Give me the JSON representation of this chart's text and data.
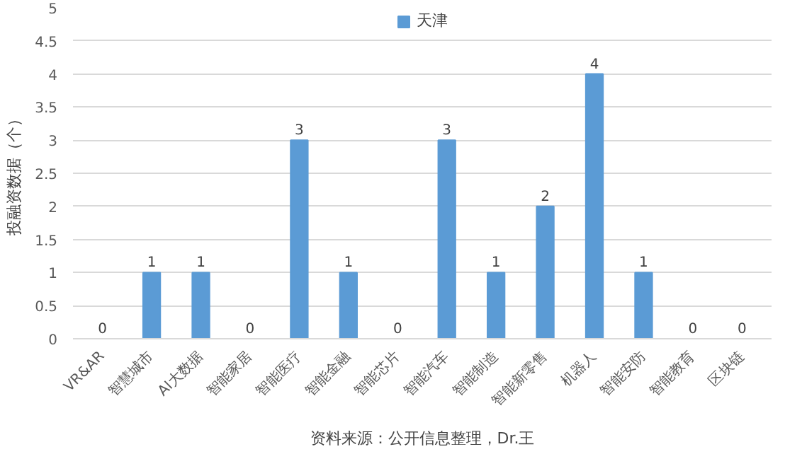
{
  "chart_data": {
    "type": "bar",
    "ylabel": "投融资数据（个）",
    "categories": [
      "VR&AR",
      "智慧城市",
      "AI大数据",
      "智能家居",
      "智能医疗",
      "智能金融",
      "智能芯片",
      "智能汽车",
      "智能制造",
      "智能新零售",
      "机器人",
      "智能安防",
      "智能教育",
      "区块链"
    ],
    "series": [
      {
        "name": "天津",
        "color": "#5b9bd5",
        "values": [
          0,
          1,
          1,
          0,
          3,
          1,
          0,
          3,
          1,
          2,
          4,
          1,
          0,
          0
        ]
      }
    ],
    "ylim": [
      0,
      5
    ],
    "yticks": [
      0,
      0.5,
      1,
      1.5,
      2,
      2.5,
      3,
      3.5,
      4,
      4.5,
      5
    ],
    "grid": "y",
    "legend": "top",
    "data_labels": true,
    "annotations": [
      "资料来源：公开信息整理，Dr.王"
    ]
  }
}
